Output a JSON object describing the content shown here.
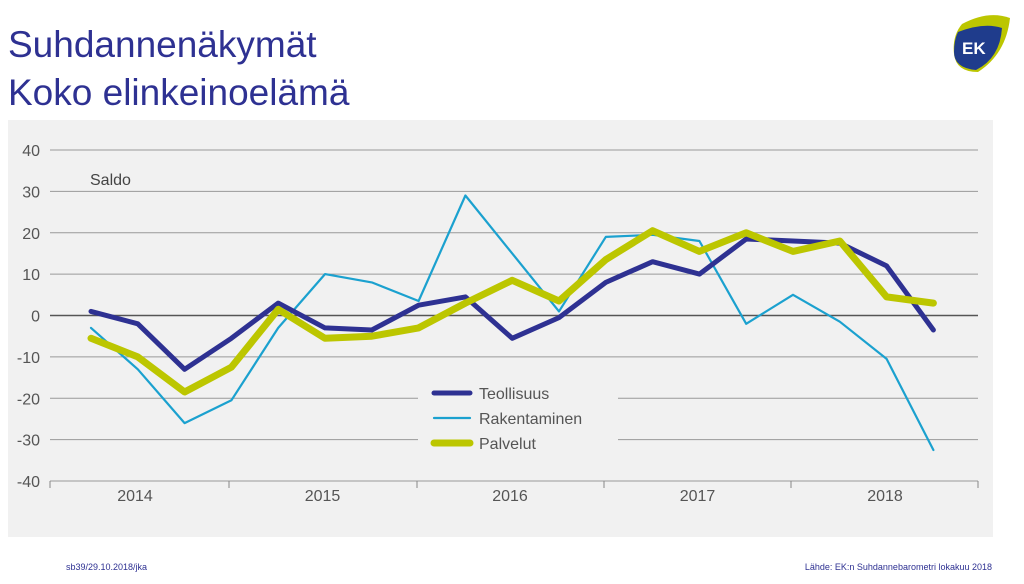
{
  "header": {
    "title_line1": "Suhdannenäkymät",
    "title_line2": "Koko elinkeinoelämä",
    "logo_text": "EK"
  },
  "footer": {
    "left": "sb39/29.10.2018/jka",
    "right": "Lähde: EK:n Suhdannebarometri lokakuu 2018"
  },
  "colors": {
    "teollisuus": "#2e3192",
    "rakentaminen": "#1ba1cf",
    "palvelut": "#bcc600",
    "title": "#2e3192"
  },
  "chart_data": {
    "type": "line",
    "ylabel": "Saldo",
    "ylim": [
      -40,
      40
    ],
    "yticks": [
      40,
      30,
      20,
      10,
      0,
      -10,
      -20,
      -30,
      -40
    ],
    "year_labels": [
      "2014",
      "2015",
      "2016",
      "2017",
      "2018"
    ],
    "x": [
      "2014Q1",
      "2014Q2",
      "2014Q3",
      "2014Q4",
      "2015Q1",
      "2015Q2",
      "2015Q3",
      "2015Q4",
      "2016Q1",
      "2016Q2",
      "2016Q3",
      "2016Q4",
      "2017Q1",
      "2017Q2",
      "2017Q3",
      "2017Q4",
      "2018Q1",
      "2018Q2",
      "2018Q3"
    ],
    "series": [
      {
        "name": "Teollisuus",
        "values": [
          1,
          -2,
          -13,
          -5.5,
          3,
          -3,
          -3.5,
          2.5,
          4.5,
          -5.5,
          -0.5,
          8,
          13,
          10,
          18.5,
          18,
          17.5,
          12,
          -3.5
        ]
      },
      {
        "name": "Rakentaminen",
        "values": [
          -3,
          -13,
          -26,
          -20.5,
          -3,
          10,
          8,
          3.5,
          29,
          15,
          1,
          19,
          19.5,
          18,
          -2,
          5,
          -1.5,
          -10.5,
          -32.5
        ]
      },
      {
        "name": "Palvelut",
        "values": [
          -5.5,
          -10,
          -18.5,
          -12.5,
          1.5,
          -5.5,
          -5,
          -3,
          3,
          8.5,
          3.5,
          13.5,
          20.5,
          15.5,
          20,
          15.5,
          18,
          4.5,
          3
        ]
      }
    ],
    "legend": "center-bottom",
    "grid": true
  }
}
